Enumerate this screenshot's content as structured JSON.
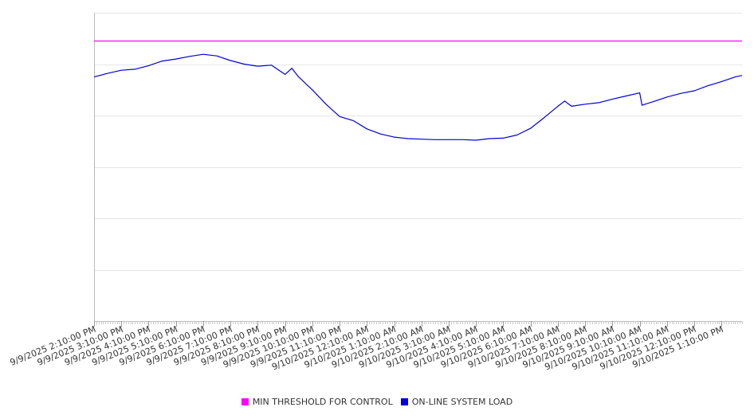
{
  "chart_data": {
    "type": "line",
    "title": "",
    "xlabel": "",
    "ylabel": "",
    "ylim": [
      0,
      6
    ],
    "y_gridlines": [
      0,
      1,
      2,
      3,
      4,
      5,
      6
    ],
    "y_tick_labels_shown": false,
    "grid": "horizontal",
    "legend_position": "bottom-center",
    "x_tick_labels": [
      "9/9/2025 2:10:00 PM",
      "9/9/2025 3:10:00 PM",
      "9/9/2025 4:10:00 PM",
      "9/9/2025 5:10:00 PM",
      "9/9/2025 6:10:00 PM",
      "9/9/2025 7:10:00 PM",
      "9/9/2025 8:10:00 PM",
      "9/9/2025 9:10:00 PM",
      "9/9/2025 10:10:00 PM",
      "9/9/2025 11:10:00 PM",
      "9/10/2025 12:10:00 AM",
      "9/10/2025 1:10:00 AM",
      "9/10/2025 2:10:00 AM",
      "9/10/2025 3:10:00 AM",
      "9/10/2025 4:10:00 AM",
      "9/10/2025 5:10:00 AM",
      "9/10/2025 6:10:00 AM",
      "9/10/2025 7:10:00 AM",
      "9/10/2025 8:10:00 AM",
      "9/10/2025 9:10:00 AM",
      "9/10/2025 10:10:00 AM",
      "9/10/2025 11:10:00 AM",
      "9/10/2025 12:10:00 PM",
      "9/10/2025 1:10:00 PM"
    ],
    "x_range": [
      "9/9/2025 2:10:00 PM",
      "9/10/2025 1:55:00 PM"
    ],
    "series": [
      {
        "name": "MIN THRESHOLD FOR CONTROL",
        "color": "#ff00ff",
        "x": [
          "9/9/2025 2:10:00 PM",
          "9/10/2025 1:55:00 PM"
        ],
        "values": [
          5.45,
          5.45
        ]
      },
      {
        "name": "ON-LINE SYSTEM LOAD",
        "color": "#0000dd",
        "x": [
          "9/9/2025 2:10:00 PM",
          "9/9/2025 2:40:00 PM",
          "9/9/2025 3:10:00 PM",
          "9/9/2025 3:40:00 PM",
          "9/9/2025 4:10:00 PM",
          "9/9/2025 4:40:00 PM",
          "9/9/2025 5:10:00 PM",
          "9/9/2025 5:40:00 PM",
          "9/9/2025 6:10:00 PM",
          "9/9/2025 6:40:00 PM",
          "9/9/2025 7:10:00 PM",
          "9/9/2025 7:40:00 PM",
          "9/9/2025 8:10:00 PM",
          "9/9/2025 8:40:00 PM",
          "9/9/2025 9:10:00 PM",
          "9/9/2025 9:25:00 PM",
          "9/9/2025 9:40:00 PM",
          "9/9/2025 10:10:00 PM",
          "9/9/2025 10:40:00 PM",
          "9/9/2025 11:10:00 PM",
          "9/9/2025 11:40:00 PM",
          "9/10/2025 12:10:00 AM",
          "9/10/2025 12:40:00 AM",
          "9/10/2025 1:10:00 AM",
          "9/10/2025 1:40:00 AM",
          "9/10/2025 2:10:00 AM",
          "9/10/2025 2:40:00 AM",
          "9/10/2025 3:10:00 AM",
          "9/10/2025 3:40:00 AM",
          "9/10/2025 4:10:00 AM",
          "9/10/2025 4:40:00 AM",
          "9/10/2025 5:10:00 AM",
          "9/10/2025 5:40:00 AM",
          "9/10/2025 6:10:00 AM",
          "9/10/2025 6:40:00 AM",
          "9/10/2025 7:10:00 AM",
          "9/10/2025 7:25:00 AM",
          "9/10/2025 7:40:00 AM",
          "9/10/2025 8:10:00 AM",
          "9/10/2025 8:40:00 AM",
          "9/10/2025 9:10:00 AM",
          "9/10/2025 9:40:00 AM",
          "9/10/2025 10:10:00 AM",
          "9/10/2025 10:15:00 AM",
          "9/10/2025 10:40:00 AM",
          "9/10/2025 11:10:00 AM",
          "9/10/2025 11:40:00 AM",
          "9/10/2025 12:10:00 PM",
          "9/10/2025 12:40:00 PM",
          "9/10/2025 1:10:00 PM",
          "9/10/2025 1:40:00 PM",
          "9/10/2025 1:55:00 PM"
        ],
        "values": [
          4.75,
          4.82,
          4.88,
          4.9,
          4.97,
          5.06,
          5.1,
          5.15,
          5.19,
          5.16,
          5.07,
          5.0,
          4.96,
          4.98,
          4.8,
          4.92,
          4.75,
          4.5,
          4.22,
          3.98,
          3.9,
          3.74,
          3.64,
          3.58,
          3.55,
          3.54,
          3.53,
          3.53,
          3.53,
          3.52,
          3.55,
          3.56,
          3.62,
          3.75,
          3.96,
          4.18,
          4.28,
          4.18,
          4.22,
          4.25,
          4.32,
          4.38,
          4.44,
          4.2,
          4.27,
          4.36,
          4.43,
          4.48,
          4.58,
          4.66,
          4.75,
          4.78
        ]
      }
    ]
  }
}
